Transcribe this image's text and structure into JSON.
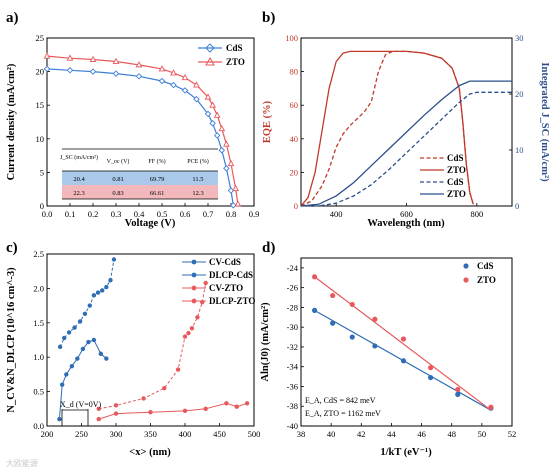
{
  "watermark": "大欧能源",
  "chart_data": [
    {
      "panel": "a)",
      "type": "line",
      "xlabel": "Voltage (V)",
      "ylabel": "Current density (mA/cm²)",
      "xlim": [
        0,
        0.9
      ],
      "ylim": [
        0,
        25
      ],
      "xticks": [
        "0.0",
        "0.1",
        "0.2",
        "0.3",
        "0.4",
        "0.5",
        "0.6",
        "0.7",
        "0.8",
        "0.9"
      ],
      "yticks": [
        "0",
        "5",
        "10",
        "15",
        "20",
        "25"
      ],
      "legend": "top-right",
      "series": [
        {
          "name": "CdS",
          "color": "#3f7fd8",
          "marker": "diamond",
          "x": [
            0,
            0.1,
            0.2,
            0.3,
            0.4,
            0.5,
            0.55,
            0.6,
            0.65,
            0.7,
            0.72,
            0.74,
            0.76,
            0.78,
            0.8,
            0.81
          ],
          "y": [
            20.4,
            20.2,
            20.0,
            19.7,
            19.3,
            18.6,
            18.0,
            17.2,
            15.9,
            13.7,
            12.3,
            10.5,
            8.3,
            5.6,
            2.3,
            0.1
          ]
        },
        {
          "name": "ZTO",
          "color": "#e8595c",
          "marker": "triangle",
          "x": [
            0,
            0.1,
            0.2,
            0.3,
            0.4,
            0.5,
            0.55,
            0.6,
            0.65,
            0.7,
            0.72,
            0.74,
            0.76,
            0.78,
            0.8,
            0.82,
            0.83
          ],
          "y": [
            22.3,
            22.0,
            21.8,
            21.5,
            21.0,
            20.4,
            19.8,
            19.1,
            18.0,
            16.2,
            15.0,
            13.5,
            11.5,
            9.2,
            6.3,
            2.6,
            0.3
          ]
        }
      ],
      "table": {
        "headers": [
          "J_SC (mA/cm²)",
          "V_oc (V)",
          "FF (%)",
          "PCE (%)"
        ],
        "rows": [
          [
            "20.4",
            "0.81",
            "69.79",
            "11.5"
          ],
          [
            "22.3",
            "0.83",
            "66.61",
            "12.3"
          ]
        ],
        "row_colors": [
          "#a9c8ea",
          "#f2b8bb"
        ]
      }
    },
    {
      "panel": "b)",
      "type": "line",
      "xlabel": "Wavelength (nm)",
      "ylabel": "EQE (%)",
      "y2label": "Integrated J_SC (mA/cm²)",
      "xlim": [
        300,
        900
      ],
      "ylim": [
        0,
        100
      ],
      "y2lim": [
        0,
        30
      ],
      "xticks": [
        "400",
        "600",
        "800"
      ],
      "yticks": [
        "0",
        "20",
        "40",
        "60",
        "80",
        "100"
      ],
      "y2ticks": [
        "0",
        "10",
        "20",
        "30"
      ],
      "legend": "bottom-right",
      "series": [
        {
          "name": "CdS",
          "axis": "EQE",
          "color": "#c0392b",
          "style": "dashed",
          "x": [
            300,
            330,
            360,
            380,
            400,
            420,
            440,
            460,
            480,
            500,
            520,
            540,
            560,
            600,
            650,
            700,
            730,
            750,
            760,
            770,
            780,
            790
          ],
          "y": [
            0,
            3,
            12,
            22,
            35,
            43,
            48,
            52,
            56,
            62,
            80,
            90,
            92,
            92,
            91,
            88,
            82,
            70,
            50,
            25,
            8,
            1
          ]
        },
        {
          "name": "ZTO",
          "axis": "EQE",
          "color": "#c0392b",
          "style": "solid",
          "x": [
            300,
            320,
            340,
            360,
            380,
            400,
            420,
            440,
            460,
            500,
            550,
            600,
            650,
            700,
            730,
            750,
            760,
            770,
            780,
            790
          ],
          "y": [
            0,
            5,
            20,
            45,
            70,
            86,
            91,
            92,
            92,
            92,
            92,
            92,
            91,
            88,
            82,
            70,
            50,
            25,
            8,
            1
          ]
        },
        {
          "name": "CdS",
          "axis": "Integrated J_SC",
          "color": "#2c4f8c",
          "style": "dashed",
          "x": [
            300,
            350,
            400,
            450,
            500,
            550,
            600,
            650,
            700,
            750,
            780,
            800,
            900
          ],
          "y": [
            0,
            0,
            0.5,
            1.8,
            3.8,
            6.5,
            9.5,
            12.5,
            15.5,
            18.5,
            20.0,
            20.3,
            20.3
          ]
        },
        {
          "name": "ZTO",
          "axis": "Integrated J_SC",
          "color": "#2c4f8c",
          "style": "solid",
          "x": [
            300,
            350,
            400,
            450,
            500,
            550,
            600,
            650,
            700,
            750,
            780,
            800,
            900
          ],
          "y": [
            0,
            0.3,
            1.8,
            4.2,
            7.2,
            10.2,
            13.2,
            16.2,
            19.0,
            21.5,
            22.3,
            22.3,
            22.3
          ]
        }
      ]
    },
    {
      "panel": "c)",
      "type": "scatter",
      "xlabel": "<x> (nm)",
      "ylabel": "N_CV&N_DLCP (10^16 cm^-3)",
      "xlim": [
        200,
        500
      ],
      "ylim": [
        0,
        2.5
      ],
      "xticks": [
        "200",
        "250",
        "300",
        "350",
        "400",
        "450",
        "500"
      ],
      "yticks": [
        "0.0",
        "0.5",
        "1.0",
        "1.5",
        "2.0",
        "2.5"
      ],
      "legend": "top-right",
      "annotation": "X_d (V=0V)",
      "series": [
        {
          "name": "CV-CdS",
          "color": "#2f6db5",
          "style": "dashed",
          "x": [
            219,
            225,
            232,
            240,
            248,
            255,
            262,
            268,
            274,
            280,
            286,
            292,
            297
          ],
          "y": [
            1.15,
            1.28,
            1.36,
            1.43,
            1.52,
            1.63,
            1.75,
            1.9,
            1.94,
            1.97,
            2.02,
            2.12,
            2.42
          ]
        },
        {
          "name": "DLCP-CdS",
          "color": "#2f6db5",
          "style": "solid",
          "x": [
            218,
            222,
            228,
            236,
            244,
            252,
            260,
            268,
            278,
            286
          ],
          "y": [
            0.1,
            0.6,
            0.75,
            0.87,
            0.98,
            1.12,
            1.22,
            1.25,
            1.05,
            0.98
          ]
        },
        {
          "name": "CV-ZTO",
          "color": "#e8595c",
          "style": "dashed",
          "x": [
            275,
            300,
            340,
            370,
            390,
            400,
            405,
            410,
            418,
            425,
            430
          ],
          "y": [
            0.25,
            0.3,
            0.4,
            0.55,
            0.82,
            1.3,
            1.35,
            1.42,
            1.58,
            1.8,
            2.08
          ]
        },
        {
          "name": "DLCP-ZTO",
          "color": "#e8595c",
          "style": "solid",
          "x": [
            275,
            300,
            350,
            400,
            430,
            460,
            475,
            490
          ],
          "y": [
            0.1,
            0.18,
            0.2,
            0.22,
            0.25,
            0.33,
            0.28,
            0.33
          ]
        }
      ]
    },
    {
      "panel": "d)",
      "type": "scatter",
      "xlabel": "1/kT (eV⁻¹)",
      "ylabel": "Aln(J0) (mA/cm²)",
      "xlim": [
        38,
        52
      ],
      "ylim": [
        -40,
        -23
      ],
      "xticks": [
        "38",
        "40",
        "42",
        "44",
        "46",
        "48",
        "50",
        "52"
      ],
      "yticks": [
        "-24",
        "-26",
        "-28",
        "-30",
        "-32",
        "-34",
        "-36",
        "-38",
        "-40"
      ],
      "legend": "top-right",
      "annotations": [
        "E_A, CdS = 842 meV",
        "E_A, ZTO = 1162 meV"
      ],
      "series": [
        {
          "name": "CdS",
          "color": "#2f6db5",
          "x": [
            38.9,
            40.1,
            41.4,
            42.9,
            44.8,
            46.6,
            48.4,
            50.6
          ],
          "y": [
            -28.3,
            -29.6,
            -31.0,
            -31.9,
            -33.4,
            -35.1,
            -36.8,
            -38.2
          ],
          "fit": [
            [
              38.9,
              -28.3
            ],
            [
              50.6,
              -38.4
            ]
          ]
        },
        {
          "name": "ZTO",
          "color": "#e8595c",
          "x": [
            38.9,
            40.1,
            41.4,
            42.9,
            44.8,
            46.6,
            48.4,
            50.6
          ],
          "y": [
            -24.9,
            -26.8,
            -27.7,
            -29.2,
            -31.2,
            -34.1,
            -36.3,
            -38.1
          ],
          "fit": [
            [
              38.9,
              -24.9
            ],
            [
              50.6,
              -38.4
            ]
          ]
        }
      ]
    }
  ]
}
